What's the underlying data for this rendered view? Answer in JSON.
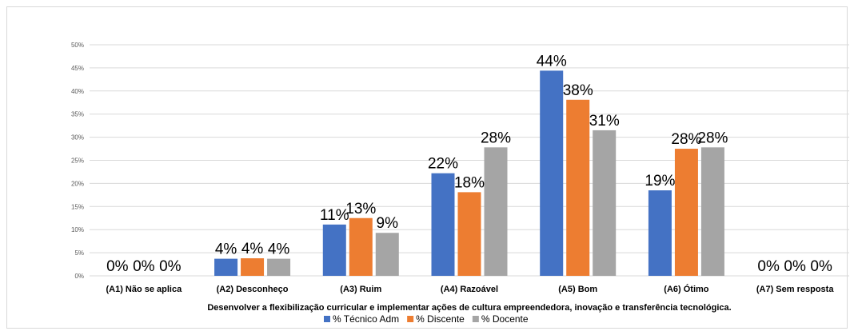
{
  "chart_data": {
    "type": "bar",
    "title": "",
    "xlabel": "Desenvolver a flexibilização curricular e implementar ações de cultura empreendedora, inovação e transferência tecnológica.",
    "ylabel": "",
    "ylim": [
      0,
      50
    ],
    "y_ticks": [
      "0%",
      "5%",
      "10%",
      "15%",
      "20%",
      "25%",
      "30%",
      "35%",
      "40%",
      "45%",
      "50%"
    ],
    "categories": [
      "(A1) Não se aplica",
      "(A2) Desconheço",
      "(A3) Ruim",
      "(A4) Razoável",
      "(A5) Bom",
      "(A6) Ótimo",
      "(A7) Sem resposta"
    ],
    "series": [
      {
        "name": "% Técnico Adm",
        "color": "#4472c4",
        "values": [
          0,
          3.7,
          11.1,
          22.2,
          44.4,
          18.5,
          0
        ],
        "labels": [
          "0%",
          "4%",
          "11%",
          "22%",
          "44%",
          "19%",
          "0%"
        ]
      },
      {
        "name": "% Discente",
        "color": "#ed7d31",
        "values": [
          0,
          3.8,
          12.5,
          18.1,
          38.1,
          27.5,
          0
        ],
        "labels": [
          "0%",
          "4%",
          "13%",
          "18%",
          "38%",
          "28%",
          "0%"
        ]
      },
      {
        "name": "% Docente",
        "color": "#a5a5a5",
        "values": [
          0,
          3.7,
          9.3,
          27.8,
          31.5,
          27.8,
          0
        ],
        "labels": [
          "0%",
          "4%",
          "9%",
          "28%",
          "31%",
          "28%",
          "0%"
        ]
      }
    ],
    "grid": true,
    "legend_position": "bottom"
  }
}
